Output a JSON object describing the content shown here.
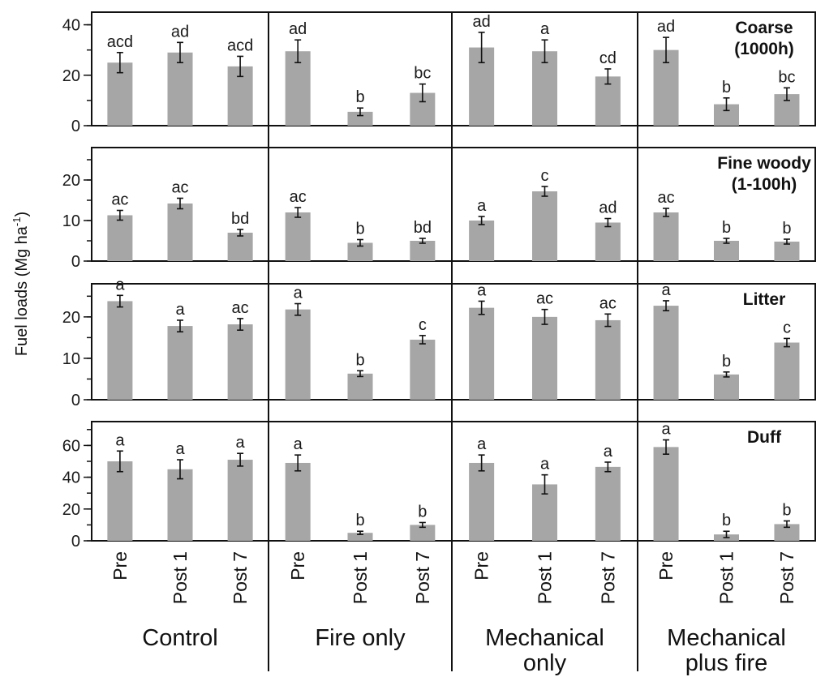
{
  "chart_data": {
    "type": "bar",
    "ylabel": "Fuel loads (Mg ha",
    "ylabel_superscript": "-1",
    "ylabel_close": ")",
    "groups": [
      "Control",
      "Fire only",
      "Mechanical only",
      "Mechanical plus fire"
    ],
    "group_lines": [
      [
        "Control"
      ],
      [
        "Fire only"
      ],
      [
        "Mechanical",
        "only"
      ],
      [
        "Mechanical",
        "plus fire"
      ]
    ],
    "categories": [
      "Pre",
      "Post 1",
      "Post 7"
    ],
    "colors": {
      "bar": "#a6a6a6",
      "axis": "#111111",
      "error": "#111111"
    },
    "grid": false,
    "panels": [
      {
        "title_lines": [
          "Coarse",
          "(1000h)"
        ],
        "ylim": [
          0,
          45
        ],
        "yticks": [
          0,
          20,
          40
        ],
        "minor_step": 10,
        "values": [
          [
            25,
            29,
            23.5
          ],
          [
            29.5,
            5.5,
            13
          ],
          [
            31,
            29.5,
            19.5
          ],
          [
            30,
            8.5,
            12.5
          ]
        ],
        "errors": [
          [
            4,
            4,
            4
          ],
          [
            4.5,
            1.5,
            3.5
          ],
          [
            6,
            4.5,
            3
          ],
          [
            5,
            2.5,
            2.5
          ]
        ],
        "letters": [
          [
            "acd",
            "ad",
            "acd"
          ],
          [
            "ad",
            "b",
            "bc"
          ],
          [
            "ad",
            "a",
            "cd"
          ],
          [
            "ad",
            "b",
            "bc"
          ]
        ]
      },
      {
        "title_lines": [
          "Fine woody",
          "(1-100h)"
        ],
        "ylim": [
          0,
          28
        ],
        "yticks": [
          0,
          10,
          20
        ],
        "minor_step": 5,
        "values": [
          [
            11.3,
            14.2,
            7
          ],
          [
            12,
            4.5,
            5
          ],
          [
            10,
            17.2,
            9.5
          ],
          [
            12,
            5,
            4.8
          ]
        ],
        "errors": [
          [
            1.2,
            1.3,
            0.8
          ],
          [
            1.2,
            0.8,
            0.6
          ],
          [
            1,
            1.2,
            1
          ],
          [
            1,
            0.6,
            0.6
          ]
        ],
        "letters": [
          [
            "ac",
            "ac",
            "bd"
          ],
          [
            "ac",
            "b",
            "bd"
          ],
          [
            "a",
            "c",
            "ad"
          ],
          [
            "ac",
            "b",
            "b"
          ]
        ]
      },
      {
        "title_lines": [
          "Litter"
        ],
        "ylim": [
          0,
          28
        ],
        "yticks": [
          0,
          10,
          20
        ],
        "minor_step": 5,
        "values": [
          [
            23.8,
            17.8,
            18.2
          ],
          [
            21.8,
            6.3,
            14.5
          ],
          [
            22.2,
            20,
            19.2
          ],
          [
            22.7,
            6.1,
            13.8
          ]
        ],
        "errors": [
          [
            1.4,
            1.4,
            1.4
          ],
          [
            1.4,
            0.7,
            1
          ],
          [
            1.6,
            1.8,
            1.5
          ],
          [
            1.2,
            0.6,
            1
          ]
        ],
        "letters": [
          [
            "a",
            "a",
            "ac"
          ],
          [
            "a",
            "b",
            "c"
          ],
          [
            "a",
            "ac",
            "ac"
          ],
          [
            "a",
            "b",
            "c"
          ]
        ]
      },
      {
        "title_lines": [
          "Duff"
        ],
        "ylim": [
          0,
          75
        ],
        "yticks": [
          0,
          20,
          40,
          60
        ],
        "minor_step": 10,
        "values": [
          [
            50,
            45,
            51
          ],
          [
            49,
            5,
            10
          ],
          [
            49,
            35.5,
            46.5
          ],
          [
            59,
            4,
            10.5
          ]
        ],
        "errors": [
          [
            6.5,
            6,
            4
          ],
          [
            5,
            1,
            1.5
          ],
          [
            5,
            6,
            3
          ],
          [
            4.5,
            2,
            2
          ]
        ],
        "letters": [
          [
            "a",
            "a",
            "a"
          ],
          [
            "a",
            "b",
            "b"
          ],
          [
            "a",
            "a",
            "a"
          ],
          [
            "a",
            "b",
            "b"
          ]
        ]
      }
    ]
  }
}
